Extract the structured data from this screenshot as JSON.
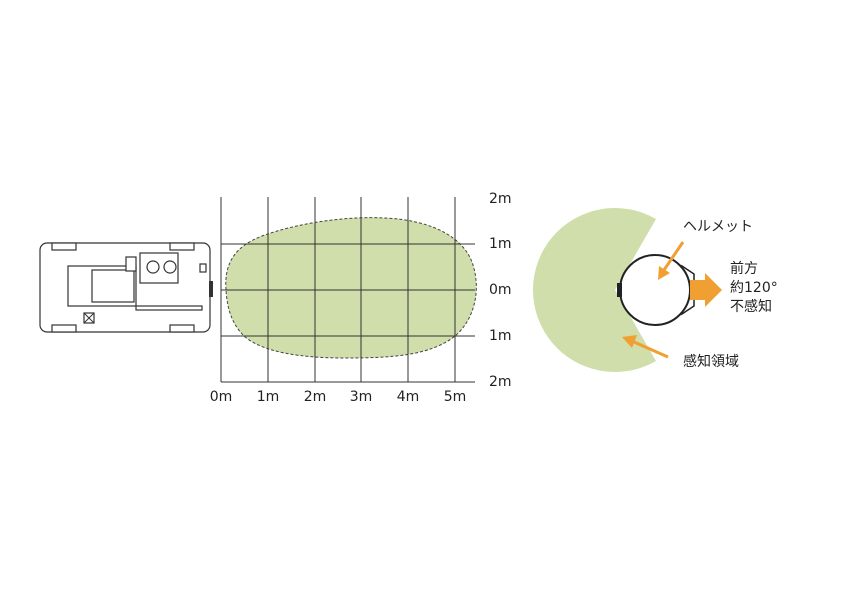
{
  "grid": {
    "x_labels": [
      "0m",
      "1m",
      "2m",
      "3m",
      "4m",
      "5m"
    ],
    "y_labels": [
      "2m",
      "1m",
      "0m",
      "1m",
      "2m"
    ]
  },
  "helmet": {
    "label": "ヘルメット",
    "front": "前方",
    "angle": "約120°",
    "blind": "不感知",
    "area": "感知領域"
  }
}
